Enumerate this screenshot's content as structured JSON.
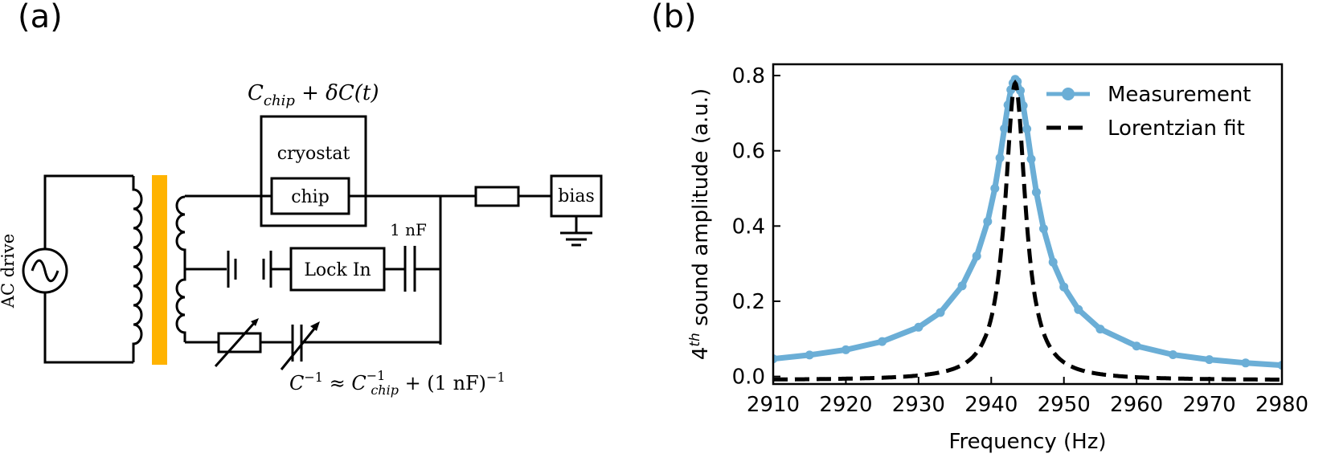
{
  "panel_a": {
    "label": "(a)",
    "source_label": "AC drive",
    "cryostat_label": "cryostat",
    "chip_label": "chip",
    "bias_label": "bias",
    "lockin_label": "Lock In",
    "cap_label": "1 nF",
    "top_eq": {
      "c": "C",
      "sub": "chip",
      "rest": " + δC(t)"
    },
    "bottom_eq": {
      "c": "C",
      "sup": "−1",
      "approx": " ≈ ",
      "c2": "C",
      "sup2": "−1",
      "sub2": "chip",
      "rest": " + (1 nF)",
      "sup3": "−1"
    },
    "colors": {
      "transformer_core": "#FFB300"
    }
  },
  "panel_b": {
    "label": "(b)"
  },
  "chart_data": {
    "type": "line",
    "xlabel": "Frequency (Hz)",
    "ylabel": {
      "prefix": "4",
      "sup": "th",
      "rest": " sound amplitude (a.u.)"
    },
    "xlim": [
      2910,
      2980
    ],
    "ylim": [
      -0.02,
      0.83
    ],
    "xticks": [
      2910,
      2920,
      2930,
      2940,
      2950,
      2960,
      2970,
      2980
    ],
    "yticks": [
      0.0,
      0.2,
      0.4,
      0.6,
      0.8
    ],
    "grid": false,
    "legend_position": "top-right",
    "series": [
      {
        "name": "Measurement",
        "color": "#6BAED6",
        "style": "line-with-markers",
        "x": [
          2910,
          2915,
          2920,
          2925,
          2930,
          2933,
          2936,
          2938,
          2939.5,
          2940.5,
          2941.2,
          2941.8,
          2942.3,
          2942.7,
          2943.0,
          2943.3,
          2943.6,
          2944.0,
          2944.4,
          2944.9,
          2945.5,
          2946.2,
          2947.2,
          2948.5,
          2950,
          2952,
          2955,
          2960,
          2965,
          2970,
          2975,
          2980
        ],
        "y": [
          0.047,
          0.057,
          0.071,
          0.093,
          0.131,
          0.17,
          0.241,
          0.32,
          0.412,
          0.5,
          0.581,
          0.659,
          0.722,
          0.762,
          0.78,
          0.79,
          0.784,
          0.76,
          0.72,
          0.658,
          0.578,
          0.49,
          0.393,
          0.304,
          0.238,
          0.178,
          0.126,
          0.081,
          0.058,
          0.045,
          0.036,
          0.03
        ]
      },
      {
        "name": "Lorentzian fit",
        "color": "#000000",
        "style": "dashed",
        "x0": 2943.3,
        "gamma": 1.7,
        "amplitude": 0.79,
        "offset": -0.01
      }
    ]
  }
}
